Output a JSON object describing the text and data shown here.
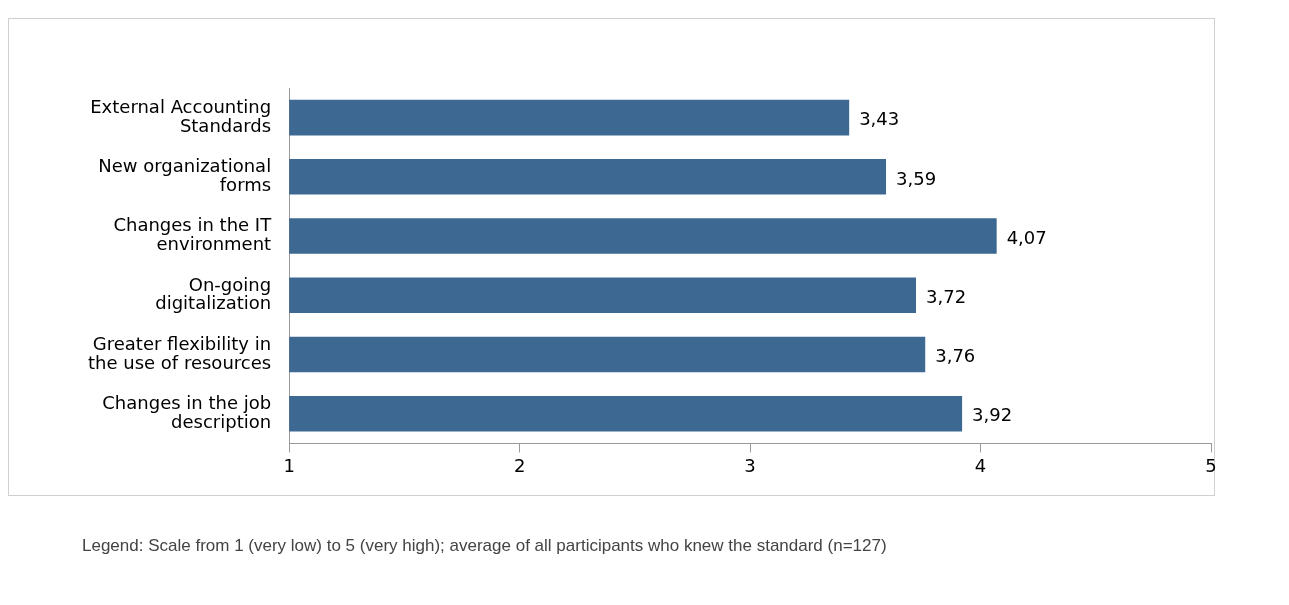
{
  "chart_data": {
    "type": "bar",
    "orientation": "horizontal",
    "categories": [
      "External Accounting Standards",
      "New organizational forms",
      "Changes in the IT environment",
      "On-going digitalization",
      "Greater flexibility in the use of resources",
      "Changes in the job description"
    ],
    "values": [
      3.43,
      3.59,
      4.07,
      3.72,
      3.76,
      3.92
    ],
    "value_labels": [
      "3,43",
      "3,59",
      "4,07",
      "3,72",
      "3,76",
      "3,92"
    ],
    "color": "#3d6891",
    "xlim": [
      1,
      5
    ],
    "xticks": [
      1,
      2,
      3,
      4,
      5
    ],
    "grid": false,
    "legend": false,
    "annotations": [
      "Legend: Scale from 1 (very low) to 5 (very high); average of all participants who knew the standard (n=127)"
    ]
  }
}
